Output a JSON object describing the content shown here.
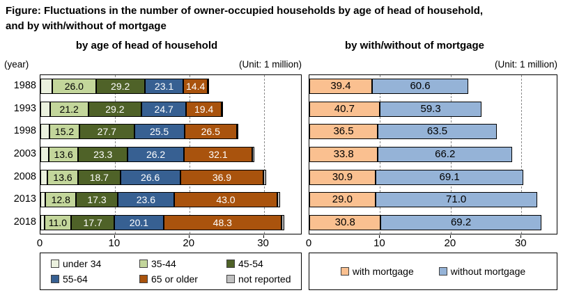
{
  "title": {
    "line1": "Figure: Fluctuations in the number of owner-occupied households by age of head of household,",
    "line2": "and by with/without of mortgage"
  },
  "left_chart": {
    "subtitle": "by age of head of household",
    "year_label": "(year)",
    "unit_label": "(Unit: 1 million)"
  },
  "right_chart": {
    "subtitle": "by with/without of mortgage",
    "unit_label": "(Unit: 1 million)"
  },
  "chart_data": [
    {
      "type": "bar",
      "orientation": "horizontal",
      "stacked": true,
      "title": "by age of head of household",
      "unit": "1 million",
      "xlabel": "",
      "ylabel": "year",
      "xlim": [
        0,
        35
      ],
      "xticks": [
        0,
        10,
        20,
        30
      ],
      "grid": "dashed vertical at 10/20/30",
      "note": "segment labels are percent shares; bar length is households in millions",
      "categories": [
        "1988",
        "1993",
        "1998",
        "2003",
        "2008",
        "2013",
        "2018"
      ],
      "totals_million": [
        22.5,
        24.4,
        26.5,
        28.7,
        30.3,
        32.2,
        32.8
      ],
      "series": [
        {
          "name": "under 34",
          "color": "#EBF1DE",
          "label_color": "#000000",
          "show_labels": false,
          "estimated": true,
          "values_percent": [
            7.1,
            5.2,
            4.6,
            4.0,
            3.1,
            2.1,
            1.6
          ]
        },
        {
          "name": "35-44",
          "color": "#C3D69B",
          "label_color": "#000000",
          "show_labels": true,
          "values_percent": [
            26.0,
            21.2,
            15.2,
            13.6,
            13.6,
            12.8,
            11.0
          ]
        },
        {
          "name": "45-54",
          "color": "#4F6228",
          "label_color": "#FFFFFF",
          "show_labels": true,
          "values_percent": [
            29.2,
            29.2,
            27.7,
            23.3,
            18.7,
            17.3,
            17.7
          ]
        },
        {
          "name": "55-64",
          "color": "#376092",
          "label_color": "#FFFFFF",
          "show_labels": true,
          "values_percent": [
            23.1,
            24.7,
            25.5,
            26.2,
            26.6,
            23.6,
            20.1
          ]
        },
        {
          "name": "65 or older",
          "color": "#A9530D",
          "label_color": "#FFFFFF",
          "show_labels": true,
          "values_percent": [
            14.4,
            19.4,
            26.5,
            32.1,
            36.9,
            43.0,
            48.3
          ]
        },
        {
          "name": "not reported",
          "color": "#C0C0C0",
          "label_color": "#000000",
          "show_labels": false,
          "estimated": true,
          "values_percent": [
            0.2,
            0.3,
            0.5,
            0.8,
            1.1,
            1.2,
            1.3
          ]
        }
      ]
    },
    {
      "type": "bar",
      "orientation": "horizontal",
      "stacked": true,
      "title": "by with/without of mortgage",
      "unit": "1 million",
      "xlabel": "",
      "ylabel": "year",
      "xlim": [
        0,
        35
      ],
      "xticks": [
        0,
        10,
        20,
        30
      ],
      "grid": "dashed vertical at 10/20/30",
      "note": "segment labels are percent shares; bar length is households in millions",
      "categories": [
        "1988",
        "1993",
        "1998",
        "2003",
        "2008",
        "2013",
        "2018"
      ],
      "totals_million": [
        22.5,
        24.4,
        26.5,
        28.7,
        30.3,
        32.2,
        32.8
      ],
      "series": [
        {
          "name": "with mortgage",
          "color": "#FAC090",
          "label_color": "#000000",
          "show_labels": true,
          "values_percent": [
            39.4,
            40.7,
            36.5,
            33.8,
            30.9,
            29.0,
            30.8
          ]
        },
        {
          "name": "without mortgage",
          "color": "#95B3D7",
          "label_color": "#000000",
          "show_labels": true,
          "values_percent": [
            60.6,
            59.3,
            63.5,
            66.2,
            69.1,
            71.0,
            69.2
          ]
        }
      ]
    }
  ],
  "legends": {
    "left_items": [
      "under 34",
      "35-44",
      "45-54",
      "55-64",
      "65 or older",
      "not reported"
    ],
    "right_items": [
      "with mortgage",
      "without mortgage"
    ]
  }
}
